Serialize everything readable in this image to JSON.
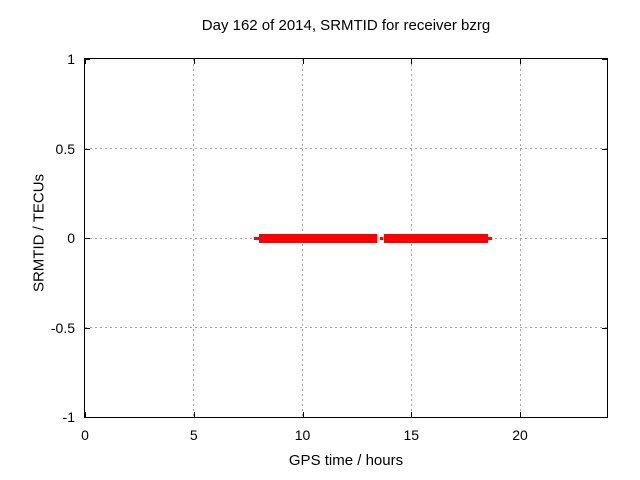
{
  "chart_data": {
    "type": "line",
    "title": "Day 162 of 2014, SRMTID for receiver bzrg",
    "xlabel": "GPS time / hours",
    "ylabel": "SRMTID / TECUs",
    "xlim": [
      0,
      24
    ],
    "ylim": [
      -1,
      1
    ],
    "xticks": [
      0,
      5,
      10,
      15,
      20
    ],
    "yticks": [
      -1,
      -0.5,
      0,
      0.5,
      1
    ],
    "xtick_labels": [
      "0",
      "5",
      "10",
      "15",
      "20"
    ],
    "ytick_labels": [
      "-1",
      "-0.5",
      "0",
      "0.5",
      "1"
    ],
    "grid": true,
    "legend": "none",
    "colors": {
      "background": "#ffffff",
      "border": "#000000",
      "grid": "#a6a6a6",
      "text": "#000000",
      "series": "#ff0000"
    },
    "series": [
      {
        "name": "SRMTID",
        "color": "#ff0000",
        "y_value": 0,
        "segments": [
          {
            "x1": 7.79,
            "x2": 8.02,
            "weight": "thin"
          },
          {
            "x1": 8.02,
            "x2": 13.42,
            "weight": "thick"
          },
          {
            "x1": 13.56,
            "x2": 13.7,
            "weight": "thin"
          },
          {
            "x1": 13.74,
            "x2": 18.55,
            "weight": "thick"
          },
          {
            "x1": 18.55,
            "x2": 18.73,
            "weight": "thin"
          }
        ]
      }
    ]
  }
}
